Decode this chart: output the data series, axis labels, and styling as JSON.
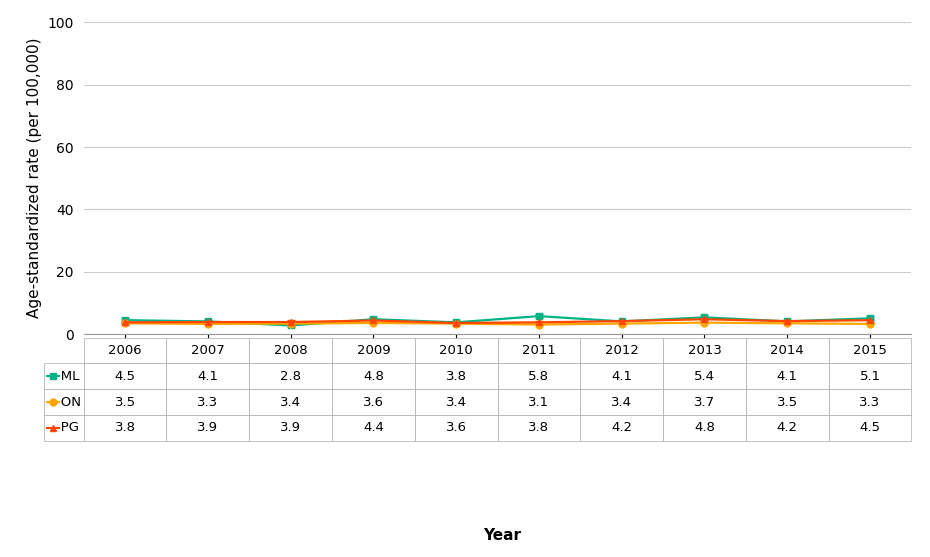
{
  "years": [
    2006,
    2007,
    2008,
    2009,
    2010,
    2011,
    2012,
    2013,
    2014,
    2015
  ],
  "ML": [
    4.5,
    4.1,
    2.8,
    4.8,
    3.8,
    5.8,
    4.1,
    5.4,
    4.1,
    5.1
  ],
  "ON": [
    3.5,
    3.3,
    3.4,
    3.6,
    3.4,
    3.1,
    3.4,
    3.7,
    3.5,
    3.3
  ],
  "PG": [
    3.8,
    3.9,
    3.9,
    4.4,
    3.6,
    3.8,
    4.2,
    4.8,
    4.2,
    4.5
  ],
  "ML_color": "#00B386",
  "ON_color": "#FFA500",
  "PG_color": "#FF4500",
  "ML_err": [
    0.6,
    0.6,
    0.5,
    0.6,
    0.5,
    0.7,
    0.6,
    0.7,
    0.6,
    0.6
  ],
  "ON_err": [
    0.1,
    0.1,
    0.1,
    0.1,
    0.1,
    0.1,
    0.1,
    0.1,
    0.1,
    0.1
  ],
  "PG_err": [
    0.5,
    0.5,
    0.5,
    0.6,
    0.5,
    0.5,
    0.5,
    0.6,
    0.5,
    0.5
  ],
  "ylabel": "Age-standardized rate (per 100,000)",
  "xlabel": "Year",
  "ylim": [
    0,
    100
  ],
  "yticks": [
    0,
    20,
    40,
    60,
    80,
    100
  ],
  "background_color": "#ffffff",
  "grid_color": "#cccccc",
  "row_labels": [
    "ML",
    "ON",
    "PG"
  ],
  "row_colors": [
    "#00B386",
    "#FFA500",
    "#FF4500"
  ],
  "row_markers": [
    "s",
    "o",
    "^"
  ],
  "fontsize_axis": 11,
  "fontsize_tick": 10,
  "fontsize_table": 9.5
}
